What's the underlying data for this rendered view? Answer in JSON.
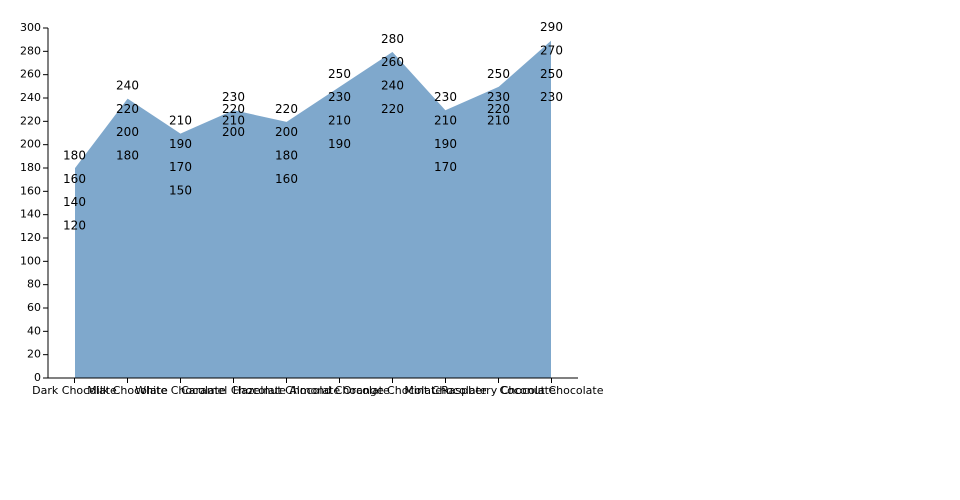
{
  "chart_data": {
    "type": "area",
    "categories": [
      "Dark Chocolate",
      "Milk Chocolate",
      "White Chocolate",
      "Caramel Chocolate",
      "Hazelnut Chocolate",
      "Almond Chocolate",
      "Orange Chocolate",
      "Mint Chocolate",
      "Raspberry Chocolate",
      "Coconut Chocolate"
    ],
    "series": [
      {
        "color": "#7fa8cc",
        "values": [
          120,
          180,
          150,
          200,
          160,
          190,
          220,
          170,
          210,
          230
        ]
      },
      {
        "color": "#7fa8cc",
        "values": [
          140,
          200,
          170,
          210,
          180,
          210,
          240,
          190,
          220,
          250
        ]
      },
      {
        "color": "#7fa8cc",
        "values": [
          160,
          220,
          190,
          220,
          200,
          230,
          260,
          210,
          230,
          270
        ]
      },
      {
        "color": "#7fa8cc",
        "values": [
          180,
          240,
          210,
          230,
          220,
          250,
          280,
          230,
          250,
          290
        ]
      }
    ],
    "ylim": [
      0,
      300
    ],
    "yticks": [
      0,
      20,
      40,
      60,
      80,
      100,
      120,
      140,
      160,
      180,
      200,
      220,
      240,
      260,
      280,
      300
    ]
  }
}
